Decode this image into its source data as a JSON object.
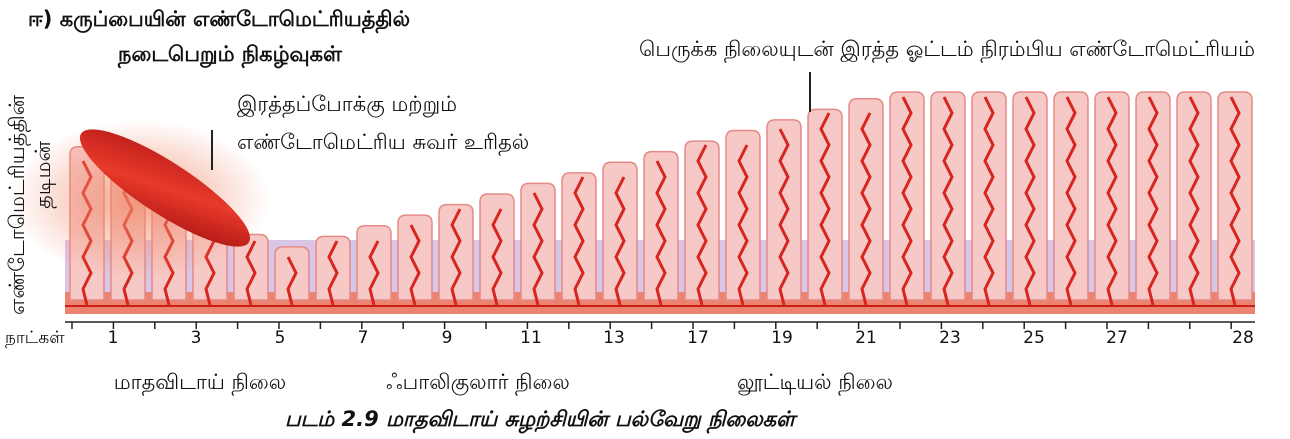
{
  "header": {
    "title_line1": "ஈ) கருப்பையின் எண்டோமெட்ரியத்தில்",
    "title_line2": "நடைபெறும் நிகழ்வுகள்"
  },
  "labels": {
    "proliferative": "பெருக்க நிலையுடன் இரத்த ஓட்டம் நிரம்பிய எண்டோமெட்ரியம்",
    "shedding_line1": "இரத்தப்போக்கு மற்றும்",
    "shedding_line2": "எண்டோமெட்ரிய சுவர் உரிதல்",
    "y_axis_line1": "எண்டோமெட்ரியத்தின்",
    "y_axis_line2": "தடிமன்"
  },
  "axis": {
    "label": "நாட்கள்",
    "days": [
      "1",
      "3",
      "5",
      "7",
      "9",
      "11",
      "13",
      "17",
      "19",
      "21",
      "23",
      "25",
      "27",
      "28"
    ]
  },
  "phases": [
    "மாதவிடாய் நிலை",
    "ஃபாலிகுலார் நிலை",
    "லூட்டியல் நிலை"
  ],
  "caption": "படம் 2.9 மாதவிடாய் சுழற்சியின் பல்வேறு நிலைகள்"
}
